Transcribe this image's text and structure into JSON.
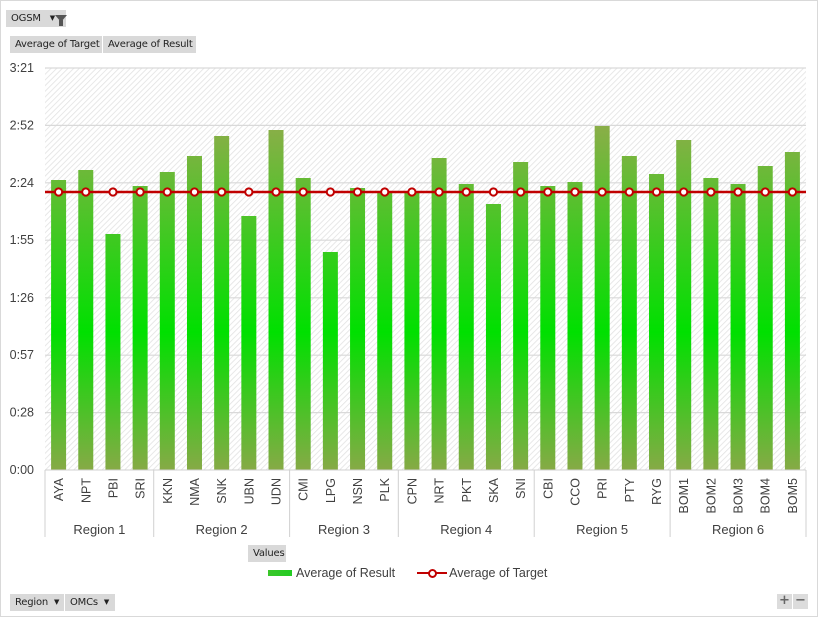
{
  "pivot": {
    "filter_field": "OGSM",
    "value_fields": [
      "Average of Target",
      "Average of Result"
    ],
    "values_button": "Values",
    "axis_fields": [
      "Region",
      "OMCs"
    ],
    "zoom_in": "+",
    "zoom_out": "−"
  },
  "colors": {
    "bar_top": "#8aae48",
    "bar_mid": "#00e000",
    "bar_bottom": "#86aa46",
    "target_line": "#c00000",
    "grid": "#d9d9d9"
  },
  "chart_data": {
    "type": "bar",
    "title": "",
    "xlabel": "",
    "ylabel": "",
    "ylim_seconds": [
      0,
      201
    ],
    "yticks": [
      "0:00",
      "0:28",
      "0:57",
      "1:26",
      "1:55",
      "2:24",
      "2:52",
      "3:21"
    ],
    "ytick_seconds": [
      0,
      28.7,
      57.4,
      86.1,
      114.9,
      143.6,
      172.3,
      201
    ],
    "grid": true,
    "legend_position": "bottom",
    "groups": [
      {
        "name": "Region 1",
        "categories": [
          "AYA",
          "NPT",
          "PBI",
          "SRI"
        ]
      },
      {
        "name": "Region 2",
        "categories": [
          "KKN",
          "NMA",
          "SNK",
          "UBN",
          "UDN"
        ]
      },
      {
        "name": "Region 3",
        "categories": [
          "CMI",
          "LPG",
          "NSN",
          "PLK"
        ]
      },
      {
        "name": "Region 4",
        "categories": [
          "CPN",
          "NRT",
          "PKT",
          "SKA",
          "SNI"
        ]
      },
      {
        "name": "Region 5",
        "categories": [
          "CBI",
          "CCO",
          "PRI",
          "PTY",
          "RYG"
        ]
      },
      {
        "name": "Region 6",
        "categories": [
          "BOM1",
          "BOM2",
          "BOM3",
          "BOM4",
          "BOM5"
        ]
      }
    ],
    "categories": [
      "AYA",
      "NPT",
      "PBI",
      "SRI",
      "KKN",
      "NMA",
      "SNK",
      "UBN",
      "UDN",
      "CMI",
      "LPG",
      "NSN",
      "PLK",
      "CPN",
      "NRT",
      "PKT",
      "SKA",
      "SNI",
      "CBI",
      "CCO",
      "PRI",
      "PTY",
      "RYG",
      "BOM1",
      "BOM2",
      "BOM3",
      "BOM4",
      "BOM5"
    ],
    "series": [
      {
        "name": "Average of Result",
        "type": "bar",
        "unit": "seconds",
        "values": [
          145,
          150,
          118,
          142,
          149,
          157,
          167,
          127,
          170,
          146,
          109,
          141,
          139,
          139,
          156,
          143,
          133,
          154,
          142,
          144,
          172,
          157,
          148,
          165,
          146,
          143,
          152,
          159
        ]
      },
      {
        "name": "Average of Target",
        "type": "line",
        "unit": "seconds",
        "values": [
          139,
          139,
          139,
          139,
          139,
          139,
          139,
          139,
          139,
          139,
          139,
          139,
          139,
          139,
          139,
          139,
          139,
          139,
          139,
          139,
          139,
          139,
          139,
          139,
          139,
          139,
          139,
          139
        ]
      }
    ]
  }
}
